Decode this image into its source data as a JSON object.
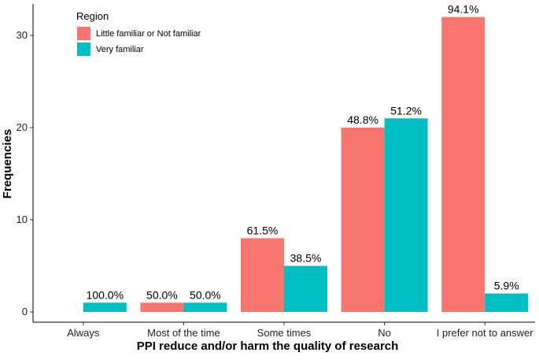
{
  "chart_data": {
    "type": "bar",
    "title": "",
    "xlabel": "PPI reduce and/or harm the quality of research",
    "ylabel": "Frequencies",
    "ylim": [
      0,
      33
    ],
    "yticks": [
      0,
      10,
      20,
      30
    ],
    "grid": false,
    "categories": [
      "Always",
      "Most of the time",
      "Some times",
      "No",
      "I prefer not to answer"
    ],
    "legend": {
      "title": "Region",
      "placement": "top-left"
    },
    "series": [
      {
        "name": "Little familiar or Not familiar",
        "color": "#F8766D",
        "values": [
          0,
          1,
          8,
          20,
          32
        ],
        "labels": [
          "",
          "50.0%",
          "61.5%",
          "48.8%",
          "94.1%"
        ]
      },
      {
        "name": "Very familiar",
        "color": "#00BFC4",
        "values": [
          1,
          1,
          5,
          21,
          2
        ],
        "labels": [
          "100.0%",
          "50.0%",
          "38.5%",
          "51.2%",
          "5.9%"
        ]
      }
    ]
  }
}
